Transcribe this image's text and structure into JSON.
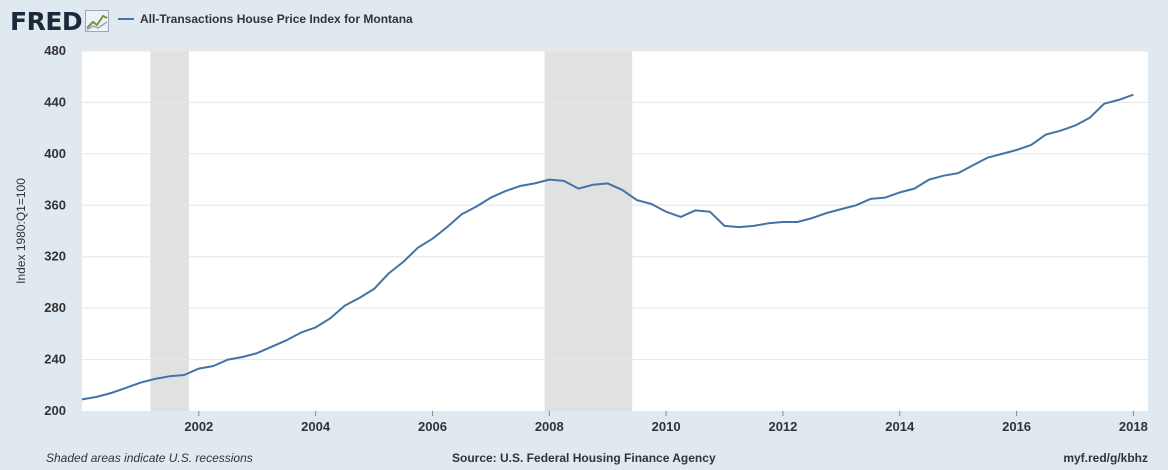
{
  "header": {
    "logo": "FRED",
    "logo_icon": "line-chart-icon"
  },
  "legend": {
    "label": "All-Transactions House Price Index for Montana",
    "color": "#4572a7"
  },
  "footer": {
    "note": "Shaded areas indicate U.S. recessions",
    "source": "Source: U.S. Federal Housing Finance Agency",
    "link": "myf.red/g/kbhz"
  },
  "chart_data": {
    "type": "line",
    "title": "",
    "xlabel": "",
    "ylabel": "Index 1980:Q1=100",
    "xlim": [
      2000.0,
      2018.25
    ],
    "ylim": [
      200,
      480
    ],
    "yticks": [
      200,
      240,
      280,
      320,
      360,
      400,
      440,
      480
    ],
    "xticks": [
      2002,
      2004,
      2006,
      2008,
      2010,
      2012,
      2014,
      2016,
      2018
    ],
    "grid": true,
    "legend_position": "top-left",
    "recessions": [
      [
        2001.17,
        2001.83
      ],
      [
        2007.92,
        2009.42
      ]
    ],
    "series": [
      {
        "name": "All-Transactions House Price Index for Montana",
        "color": "#4572a7",
        "x": [
          2000.0,
          2000.25,
          2000.5,
          2000.75,
          2001.0,
          2001.25,
          2001.5,
          2001.75,
          2002.0,
          2002.25,
          2002.5,
          2002.75,
          2003.0,
          2003.25,
          2003.5,
          2003.75,
          2004.0,
          2004.25,
          2004.5,
          2004.75,
          2005.0,
          2005.25,
          2005.5,
          2005.75,
          2006.0,
          2006.25,
          2006.5,
          2006.75,
          2007.0,
          2007.25,
          2007.5,
          2007.75,
          2008.0,
          2008.25,
          2008.5,
          2008.75,
          2009.0,
          2009.25,
          2009.5,
          2009.75,
          2010.0,
          2010.25,
          2010.5,
          2010.75,
          2011.0,
          2011.25,
          2011.5,
          2011.75,
          2012.0,
          2012.25,
          2012.5,
          2012.75,
          2013.0,
          2013.25,
          2013.5,
          2013.75,
          2014.0,
          2014.25,
          2014.5,
          2014.75,
          2015.0,
          2015.25,
          2015.5,
          2015.75,
          2016.0,
          2016.25,
          2016.5,
          2016.75,
          2017.0,
          2017.25,
          2017.5,
          2017.75,
          2018.0
        ],
        "values": [
          209,
          211,
          214,
          218,
          222,
          225,
          227,
          228,
          233,
          235,
          240,
          242,
          245,
          250,
          255,
          261,
          265,
          272,
          282,
          288,
          295,
          307,
          316,
          327,
          334,
          343,
          353,
          359,
          366,
          371,
          375,
          377,
          380,
          379,
          373,
          376,
          377,
          372,
          364,
          361,
          355,
          351,
          356,
          355,
          344,
          343,
          344,
          346,
          347,
          347,
          350,
          354,
          357,
          360,
          365,
          366,
          370,
          373,
          380,
          383,
          385,
          391,
          397,
          400,
          403,
          407,
          415,
          418,
          422,
          428,
          439,
          442,
          446
        ]
      }
    ]
  }
}
